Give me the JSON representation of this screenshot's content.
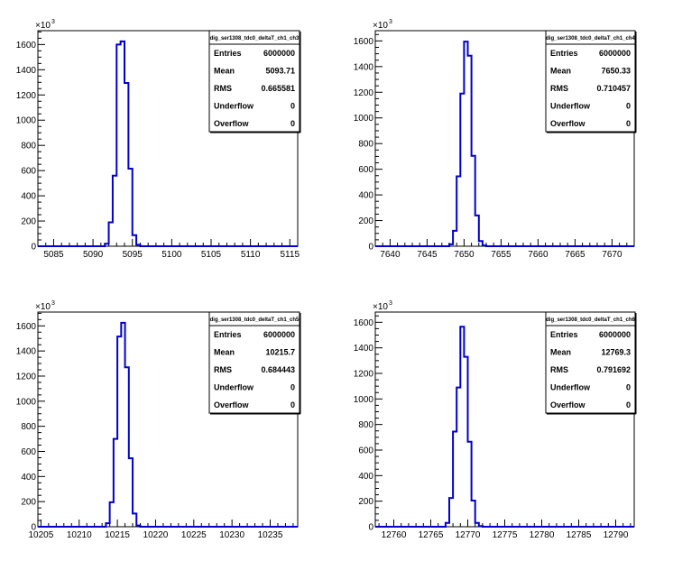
{
  "chart_data": [
    {
      "type": "bar",
      "histogram_name": "dig_ser1308_tdc0_deltaT_ch1_ch3",
      "y_multiplier_label": "×10",
      "y_multiplier_exp": "3",
      "xlim": [
        5083.0,
        5116.0
      ],
      "ylim": [
        0,
        1710
      ],
      "x_ticks": [
        5085,
        5090,
        5095,
        5100,
        5105,
        5110,
        5115
      ],
      "y_ticks": [
        0,
        200,
        400,
        600,
        800,
        1000,
        1200,
        1400,
        1600
      ],
      "bins": [
        {
          "x0": 5091.5,
          "x1": 5092.0,
          "y": 20
        },
        {
          "x0": 5092.0,
          "x1": 5092.5,
          "y": 190
        },
        {
          "x0": 5092.5,
          "x1": 5093.0,
          "y": 560
        },
        {
          "x0": 5093.0,
          "x1": 5093.5,
          "y": 1600
        },
        {
          "x0": 5093.5,
          "x1": 5094.0,
          "y": 1625
        },
        {
          "x0": 5094.0,
          "x1": 5094.5,
          "y": 1295
        },
        {
          "x0": 5094.5,
          "x1": 5095.0,
          "y": 615
        },
        {
          "x0": 5095.0,
          "x1": 5095.5,
          "y": 88
        },
        {
          "x0": 5095.5,
          "x1": 5096.0,
          "y": 12
        }
      ],
      "stats": [
        {
          "key": "Entries",
          "value": "6000000"
        },
        {
          "key": "Mean",
          "value": "5093.71"
        },
        {
          "key": "RMS",
          "value": "0.665581"
        },
        {
          "key": "Underflow",
          "value": "0"
        },
        {
          "key": "Overflow",
          "value": "0"
        }
      ]
    },
    {
      "type": "bar",
      "histogram_name": "dig_ser1308_tdc0_deltaT_ch1_ch4",
      "y_multiplier_label": "×10",
      "y_multiplier_exp": "3",
      "xlim": [
        7638.0,
        7673.0
      ],
      "ylim": [
        0,
        1680
      ],
      "x_ticks": [
        7640,
        7645,
        7650,
        7655,
        7660,
        7665,
        7670
      ],
      "y_ticks": [
        0,
        200,
        400,
        600,
        800,
        1000,
        1200,
        1400,
        1600
      ],
      "bins": [
        {
          "x0": 7648.0,
          "x1": 7648.5,
          "y": 15
        },
        {
          "x0": 7648.5,
          "x1": 7649.0,
          "y": 120
        },
        {
          "x0": 7649.0,
          "x1": 7649.5,
          "y": 545
        },
        {
          "x0": 7649.5,
          "x1": 7650.0,
          "y": 1190
        },
        {
          "x0": 7650.0,
          "x1": 7650.5,
          "y": 1595
        },
        {
          "x0": 7650.5,
          "x1": 7651.0,
          "y": 1485
        },
        {
          "x0": 7651.0,
          "x1": 7651.5,
          "y": 705
        },
        {
          "x0": 7651.5,
          "x1": 7652.0,
          "y": 240
        },
        {
          "x0": 7652.0,
          "x1": 7652.5,
          "y": 40
        },
        {
          "x0": 7652.5,
          "x1": 7653.0,
          "y": 6
        }
      ],
      "stats": [
        {
          "key": "Entries",
          "value": "6000000"
        },
        {
          "key": "Mean",
          "value": "7650.33"
        },
        {
          "key": "RMS",
          "value": "0.710457"
        },
        {
          "key": "Underflow",
          "value": "0"
        },
        {
          "key": "Overflow",
          "value": "0"
        }
      ]
    },
    {
      "type": "bar",
      "histogram_name": "dig_ser1308_tdc0_deltaT_ch1_ch5",
      "y_multiplier_label": "×10",
      "y_multiplier_exp": "3",
      "xlim": [
        10204.6,
        10238.6
      ],
      "ylim": [
        0,
        1710
      ],
      "x_ticks": [
        10205,
        10210,
        10215,
        10220,
        10225,
        10230,
        10235
      ],
      "y_ticks": [
        0,
        200,
        400,
        600,
        800,
        1000,
        1200,
        1400,
        1600
      ],
      "bins": [
        {
          "x0": 10213.5,
          "x1": 10214.0,
          "y": 28
        },
        {
          "x0": 10214.0,
          "x1": 10214.5,
          "y": 195
        },
        {
          "x0": 10214.5,
          "x1": 10215.0,
          "y": 700
        },
        {
          "x0": 10215.0,
          "x1": 10215.5,
          "y": 1515
        },
        {
          "x0": 10215.5,
          "x1": 10216.0,
          "y": 1625
        },
        {
          "x0": 10216.0,
          "x1": 10216.5,
          "y": 1270
        },
        {
          "x0": 10216.5,
          "x1": 10217.0,
          "y": 545
        },
        {
          "x0": 10217.0,
          "x1": 10217.5,
          "y": 105
        },
        {
          "x0": 10217.5,
          "x1": 10218.0,
          "y": 10
        }
      ],
      "stats": [
        {
          "key": "Entries",
          "value": "6000000"
        },
        {
          "key": "Mean",
          "value": "10215.7"
        },
        {
          "key": "RMS",
          "value": "0.684443"
        },
        {
          "key": "Underflow",
          "value": "0"
        },
        {
          "key": "Overflow",
          "value": "0"
        }
      ]
    },
    {
      "type": "bar",
      "histogram_name": "dig_ser1308_tdc0_deltaT_ch1_ch6",
      "y_multiplier_label": "×10",
      "y_multiplier_exp": "3",
      "xlim": [
        12757.5,
        12792.5
      ],
      "ylim": [
        0,
        1680
      ],
      "x_ticks": [
        12760,
        12765,
        12770,
        12775,
        12780,
        12785,
        12790
      ],
      "y_ticks": [
        0,
        200,
        400,
        600,
        800,
        1000,
        1200,
        1400,
        1600
      ],
      "bins": [
        {
          "x0": 12767.0,
          "x1": 12767.5,
          "y": 30
        },
        {
          "x0": 12767.5,
          "x1": 12768.0,
          "y": 225
        },
        {
          "x0": 12768.0,
          "x1": 12768.5,
          "y": 745
        },
        {
          "x0": 12768.5,
          "x1": 12769.0,
          "y": 1090
        },
        {
          "x0": 12769.0,
          "x1": 12769.5,
          "y": 1565
        },
        {
          "x0": 12769.5,
          "x1": 12770.0,
          "y": 1330
        },
        {
          "x0": 12770.0,
          "x1": 12770.5,
          "y": 665
        },
        {
          "x0": 12770.5,
          "x1": 12771.0,
          "y": 205
        },
        {
          "x0": 12771.0,
          "x1": 12771.5,
          "y": 30
        },
        {
          "x0": 12771.5,
          "x1": 12772.0,
          "y": 5
        }
      ],
      "stats": [
        {
          "key": "Entries",
          "value": "6000000"
        },
        {
          "key": "Mean",
          "value": "12769.3"
        },
        {
          "key": "RMS",
          "value": "0.791692"
        },
        {
          "key": "Underflow",
          "value": "0"
        },
        {
          "key": "Overflow",
          "value": "0"
        }
      ],
      "colors": {
        "histogram_line": "#0000cc",
        "frame": "#000000",
        "background": "#ffffff"
      }
    }
  ],
  "style": {
    "histogram_line": "#0000cc",
    "frame": "#000000",
    "background": "#ffffff"
  }
}
